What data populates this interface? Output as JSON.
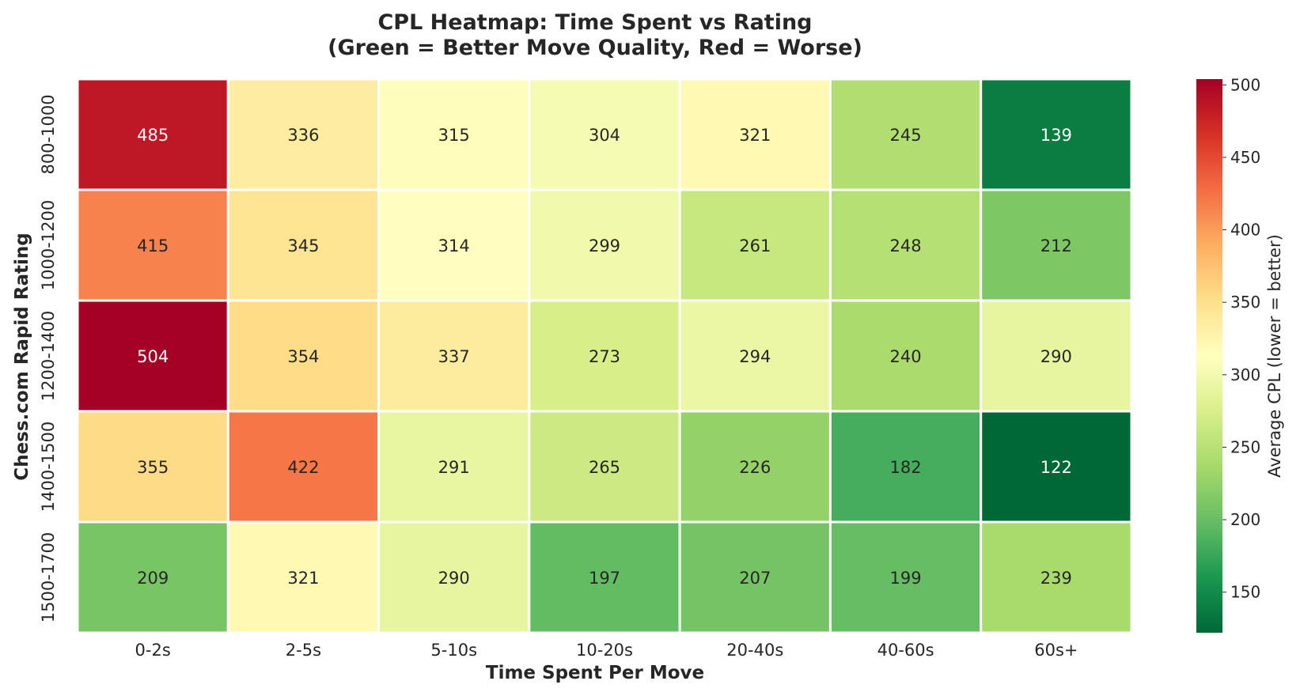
{
  "chart_data": {
    "type": "heatmap",
    "title": "CPL Heatmap: Time Spent vs Rating",
    "subtitle": "(Green = Better Move Quality, Red = Worse)",
    "xlabel": "Time Spent Per Move",
    "ylabel": "Chess.com Rapid Rating",
    "x_categories": [
      "0-2s",
      "2-5s",
      "5-10s",
      "10-20s",
      "20-40s",
      "40-60s",
      "60s+"
    ],
    "y_categories": [
      "800-1000",
      "1000-1200",
      "1200-1400",
      "1400-1500",
      "1500-1700"
    ],
    "values": [
      [
        485,
        336,
        315,
        304,
        321,
        245,
        139
      ],
      [
        415,
        345,
        314,
        299,
        261,
        248,
        212
      ],
      [
        504,
        354,
        337,
        273,
        294,
        240,
        290
      ],
      [
        355,
        422,
        291,
        265,
        226,
        182,
        122
      ],
      [
        209,
        321,
        290,
        197,
        207,
        199,
        239
      ]
    ],
    "colorbar": {
      "label": "Average CPL (lower = better)",
      "range": [
        122,
        504
      ],
      "ticks": [
        150,
        200,
        250,
        300,
        350,
        400,
        450,
        500
      ],
      "colormap": "RdYlGn_r"
    },
    "annotations": true,
    "grid": false
  }
}
